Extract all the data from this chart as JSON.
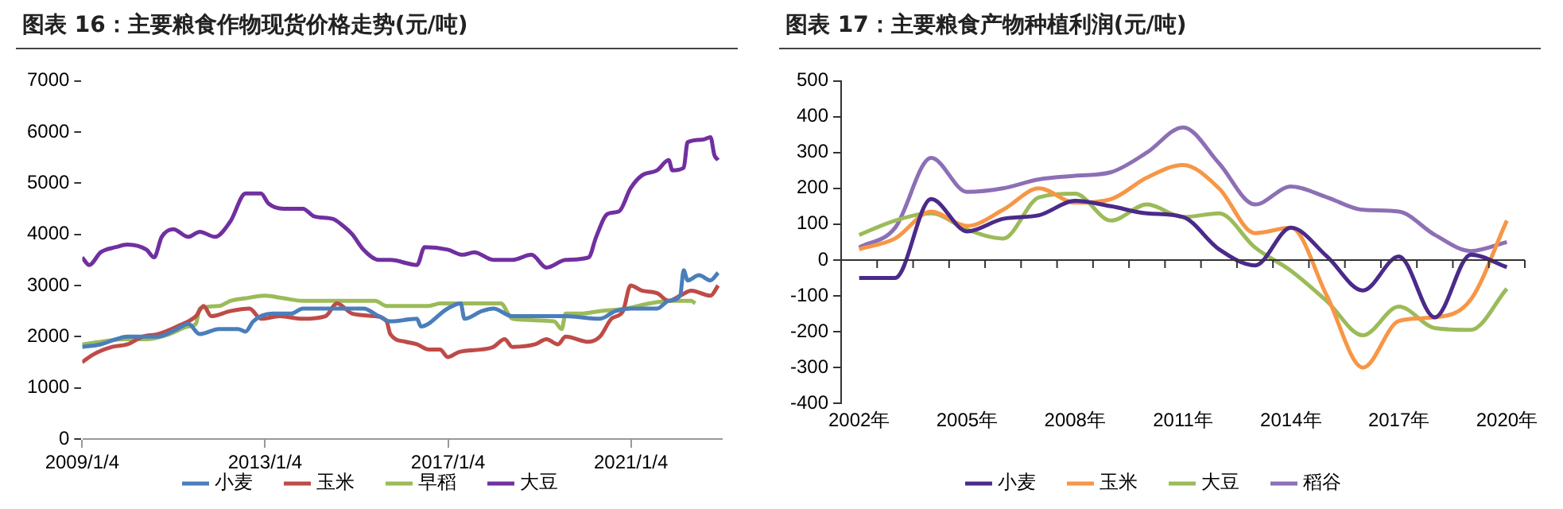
{
  "chart_data": [
    {
      "type": "line",
      "title": "图表 16：主要粮食作物现货价格走势(元/吨)",
      "legend": "bottom",
      "grid": false,
      "marker": "none",
      "line_style": "solid",
      "xlim": [
        "2009-01-04",
        "2022-12-31"
      ],
      "xticks": [
        {
          "value": "2009-01-04",
          "label": "2009/1/4"
        },
        {
          "value": "2013-01-04",
          "label": "2013/1/4"
        },
        {
          "value": "2017-01-04",
          "label": "2017/1/4"
        },
        {
          "value": "2021-01-04",
          "label": "2021/1/4"
        }
      ],
      "ylim": [
        0,
        7000
      ],
      "yticks": [
        0,
        1000,
        2000,
        3000,
        4000,
        5000,
        6000,
        7000
      ],
      "series": [
        {
          "name": "小麦",
          "color": "#4a7ebb",
          "x": [
            "2009-01-04",
            "2009-06",
            "2009-10",
            "2010-01",
            "2010-09",
            "2011-02",
            "2011-05",
            "2011-08",
            "2012-01",
            "2012-06",
            "2012-08",
            "2012-10",
            "2013-03",
            "2013-08",
            "2013-11",
            "2014-08",
            "2015-03",
            "2015-07",
            "2015-10",
            "2016-05",
            "2016-06",
            "2017-01",
            "2017-04-15",
            "2017-05-15",
            "2017-10",
            "2018-01",
            "2018-06",
            "2019-05",
            "2019-08",
            "2020-05",
            "2020-09",
            "2021-01",
            "2021-08",
            "2021-11",
            "2022-02",
            "2022-03",
            "2022-04",
            "2022-07",
            "2022-10",
            "2022-12"
          ],
          "values": [
            1800,
            1850,
            1950,
            2000,
            2000,
            2150,
            2250,
            2050,
            2150,
            2150,
            2100,
            2300,
            2450,
            2450,
            2550,
            2550,
            2550,
            2400,
            2300,
            2350,
            2200,
            2550,
            2650,
            2350,
            2500,
            2550,
            2400,
            2400,
            2400,
            2350,
            2500,
            2550,
            2550,
            2700,
            2800,
            3300,
            3100,
            3200,
            3100,
            3250
          ]
        },
        {
          "name": "玉米",
          "color": "#be4b48",
          "x": [
            "2009-01-04",
            "2009-04",
            "2009-09",
            "2010-01",
            "2010-05",
            "2010-09",
            "2011-02",
            "2011-07",
            "2011-09",
            "2011-11",
            "2012-04",
            "2012-09",
            "2012-12",
            "2013-05",
            "2013-11",
            "2014-05",
            "2014-08",
            "2014-12",
            "2015-06",
            "2015-09",
            "2015-10",
            "2016-02",
            "2016-05",
            "2016-08",
            "2016-11",
            "2017-01",
            "2017-04",
            "2017-10",
            "2018-01",
            "2018-04",
            "2018-06",
            "2018-12",
            "2019-03",
            "2019-06",
            "2019-08",
            "2020-02",
            "2020-05",
            "2020-08",
            "2020-11",
            "2021-01",
            "2021-04",
            "2021-08",
            "2021-11",
            "2022-02",
            "2022-05",
            "2022-10",
            "2022-12"
          ],
          "values": [
            1500,
            1650,
            1800,
            1850,
            2000,
            2050,
            2200,
            2400,
            2600,
            2400,
            2500,
            2550,
            2350,
            2400,
            2350,
            2400,
            2650,
            2450,
            2400,
            2300,
            2050,
            1900,
            1850,
            1750,
            1750,
            1600,
            1700,
            1750,
            1800,
            1950,
            1800,
            1850,
            1950,
            1850,
            2000,
            1900,
            2000,
            2350,
            2500,
            3000,
            2900,
            2850,
            2700,
            2800,
            2900,
            2800,
            3000
          ]
        },
        {
          "name": "早稻",
          "color": "#9bbb59",
          "x": [
            "2009-01-04",
            "2009-06",
            "2009-12",
            "2010-06",
            "2010-12",
            "2011-05",
            "2011-07",
            "2011-08",
            "2012-01",
            "2012-04",
            "2012-08",
            "2013-01",
            "2013-06",
            "2013-11",
            "2014-08",
            "2015-06",
            "2015-09",
            "2016-08",
            "2016-11",
            "2017-08",
            "2018-03",
            "2018-06",
            "2019-05",
            "2019-07",
            "2019-08",
            "2019-12",
            "2020-05",
            "2020-12",
            "2021-06",
            "2021-12",
            "2022-05",
            "2022-06"
          ],
          "values": [
            1850,
            1900,
            1950,
            1950,
            2050,
            2200,
            2250,
            2550,
            2600,
            2700,
            2750,
            2800,
            2750,
            2700,
            2700,
            2700,
            2600,
            2600,
            2650,
            2650,
            2650,
            2350,
            2300,
            2150,
            2450,
            2450,
            2500,
            2550,
            2650,
            2700,
            2700,
            2650
          ]
        },
        {
          "name": "大豆",
          "color": "#7030a0",
          "x": [
            "2009-01-04",
            "2009-03",
            "2009-06",
            "2009-10",
            "2010-01",
            "2010-06",
            "2010-08",
            "2010-10",
            "2011-01",
            "2011-05",
            "2011-08",
            "2011-12",
            "2012-04",
            "2012-08",
            "2012-12",
            "2013-02",
            "2013-06",
            "2013-11",
            "2014-02",
            "2014-07",
            "2014-09",
            "2014-12",
            "2015-03",
            "2015-07",
            "2015-10",
            "2016-05",
            "2016-07",
            "2017-01",
            "2017-05",
            "2017-08",
            "2018-01",
            "2018-06",
            "2018-11",
            "2019-03",
            "2019-08",
            "2020-02",
            "2020-04",
            "2020-07",
            "2020-10",
            "2021-01",
            "2021-04",
            "2021-08",
            "2021-11",
            "2021-12",
            "2022-03",
            "2022-04",
            "2022-08",
            "2022-10",
            "2022-11",
            "2022-12"
          ],
          "values": [
            3550,
            3400,
            3650,
            3750,
            3800,
            3700,
            3550,
            3950,
            4100,
            3950,
            4050,
            3950,
            4250,
            4800,
            4800,
            4600,
            4500,
            4500,
            4350,
            4300,
            4200,
            4000,
            3700,
            3500,
            3500,
            3400,
            3750,
            3700,
            3600,
            3650,
            3500,
            3500,
            3600,
            3350,
            3500,
            3550,
            3950,
            4400,
            4450,
            4900,
            5150,
            5250,
            5450,
            5250,
            5300,
            5800,
            5850,
            5900,
            5550,
            5450
          ]
        }
      ]
    },
    {
      "type": "line",
      "title": "图表 17：主要粮食产物种植利润(元/吨)",
      "legend": "bottom",
      "grid": false,
      "marker": "none",
      "line_style": "solid",
      "categories": [
        "2002年",
        null,
        null,
        "2005年",
        null,
        null,
        "2008年",
        null,
        null,
        "2011年",
        null,
        null,
        "2014年",
        null,
        null,
        "2017年",
        null,
        null,
        "2020年"
      ],
      "ref_lines": [
        {
          "axis": "y",
          "value": 0,
          "color": "#333333"
        }
      ],
      "ylim": [
        -400,
        500
      ],
      "yticks": [
        -400,
        -300,
        -200,
        -100,
        0,
        100,
        200,
        300,
        400,
        500
      ],
      "series": [
        {
          "name": "小麦",
          "color": "#4b2a8a",
          "values": [
            -50,
            -50,
            170,
            80,
            115,
            125,
            165,
            150,
            130,
            120,
            30,
            -15,
            90,
            10,
            -85,
            10,
            -160,
            15,
            -20
          ]
        },
        {
          "name": "玉米",
          "color": "#f79646",
          "values": [
            30,
            60,
            135,
            95,
            140,
            200,
            160,
            170,
            230,
            265,
            200,
            75,
            90,
            -100,
            -300,
            -170,
            -160,
            -110,
            110
          ]
        },
        {
          "name": "大豆",
          "color": "#9bbb59",
          "values": [
            70,
            110,
            130,
            85,
            60,
            175,
            185,
            110,
            155,
            120,
            130,
            35,
            -30,
            -115,
            -210,
            -130,
            -190,
            -195,
            -80
          ]
        },
        {
          "name": "稻谷",
          "color": "#8d6fb5",
          "values": [
            35,
            90,
            285,
            190,
            200,
            225,
            235,
            245,
            300,
            370,
            270,
            155,
            205,
            175,
            140,
            135,
            70,
            25,
            50
          ]
        }
      ]
    }
  ]
}
